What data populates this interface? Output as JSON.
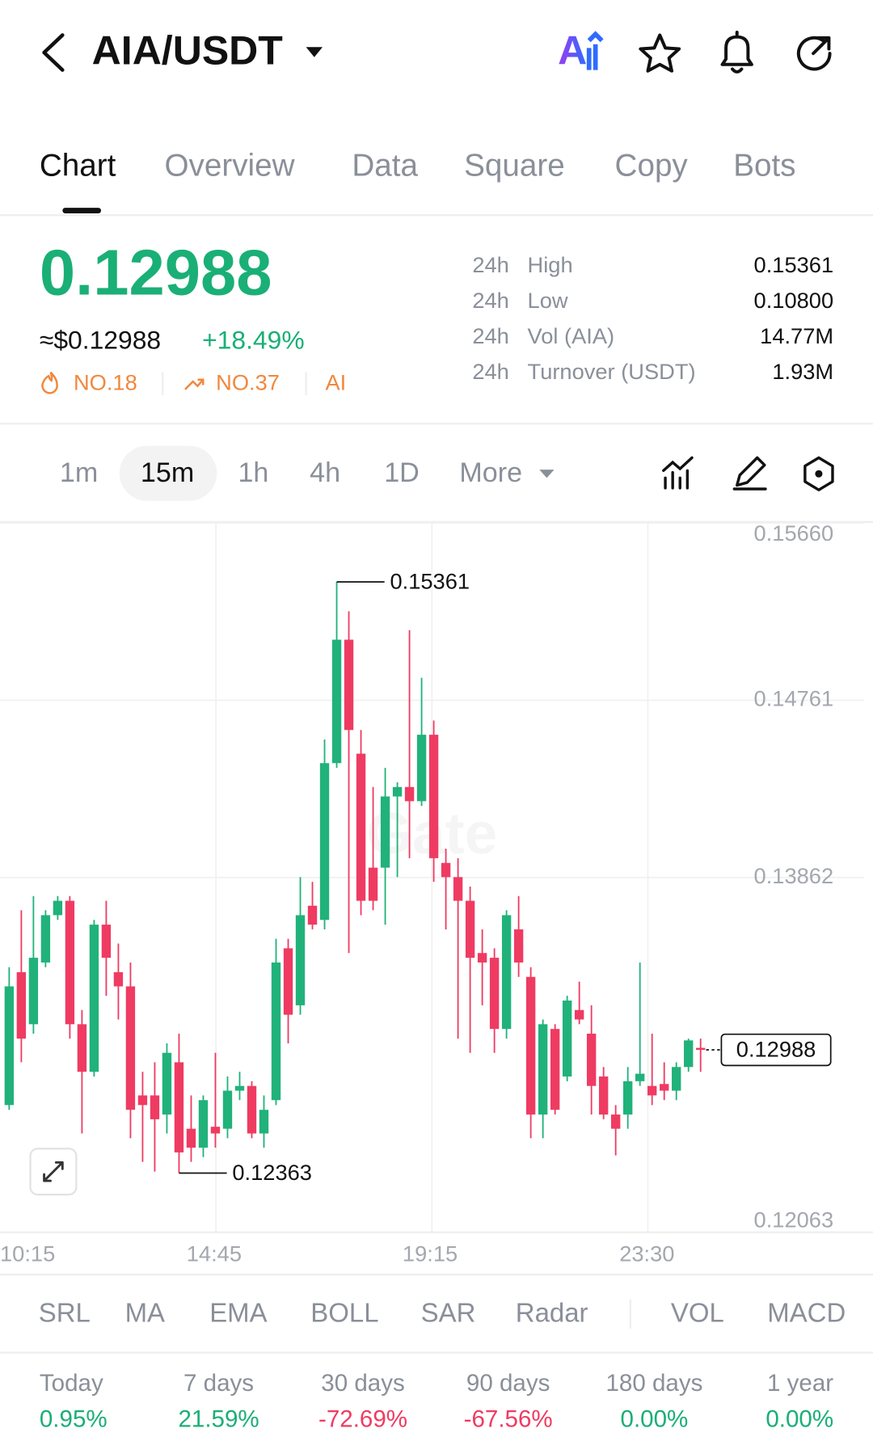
{
  "header": {
    "pair": "AIA/USDT"
  },
  "tabs": [
    "Chart",
    "Overview",
    "Data",
    "Square",
    "Copy",
    "Bots"
  ],
  "ticker": {
    "price": "0.12988",
    "usd": "≈$0.12988",
    "change": "+18.49%",
    "ranks": [
      "NO.18",
      "NO.37",
      "AI"
    ]
  },
  "stats": [
    {
      "period": "24h",
      "label": "High",
      "value": "0.15361"
    },
    {
      "period": "24h",
      "label": "Low",
      "value": "0.10800"
    },
    {
      "period": "24h",
      "label": "Vol (AIA)",
      "value": "14.77M"
    },
    {
      "period": "24h",
      "label": "Turnover (USDT)",
      "value": "1.93M"
    }
  ],
  "intervals": [
    "1m",
    "15m",
    "1h",
    "4h",
    "1D",
    "More"
  ],
  "chart_data": {
    "type": "candlestick",
    "watermark": "Gate",
    "open": [
      0.12708,
      0.13382,
      0.13118,
      0.13431,
      0.13671,
      0.13744,
      0.13118,
      0.12877,
      0.13623,
      0.13382,
      0.1331,
      0.12757,
      0.12757,
      0.1266,
      0.12925,
      0.12588,
      0.12492,
      0.12598,
      0.12588,
      0.12781,
      0.12805,
      0.12564,
      0.12733,
      0.13503,
      0.13214,
      0.13719,
      0.13647,
      0.14442,
      0.15068,
      0.1449,
      0.13912,
      0.13912,
      0.14273,
      0.14321,
      0.14249,
      0.14586,
      0.13936,
      0.13864,
      0.13744,
      0.13479,
      0.13455,
      0.13094,
      0.13599,
      0.13358,
      0.1266,
      0.13094,
      0.12853,
      0.1319,
      0.1307,
      0.12853,
      0.1266,
      0.1266,
      0.12829,
      0.12805,
      0.12815,
      0.12781,
      0.12901,
      0.12998
    ],
    "high": [
      0.13407,
      0.13696,
      0.13768,
      0.13696,
      0.13768,
      0.13768,
      0.1319,
      0.13647,
      0.13744,
      0.13527,
      0.13431,
      0.12877,
      0.12925,
      0.13021,
      0.1307,
      0.12757,
      0.12757,
      0.12973,
      0.12853,
      0.12877,
      0.12829,
      0.12757,
      0.13551,
      0.13551,
      0.13864,
      0.1384,
      0.14562,
      0.15361,
      0.15212,
      0.1461,
      0.14321,
      0.14418,
      0.14345,
      0.15116,
      0.14875,
      0.14658,
      0.14008,
      0.1396,
      0.13816,
      0.13599,
      0.13503,
      0.13696,
      0.13768,
      0.13407,
      0.13142,
      0.13118,
      0.13262,
      0.13334,
      0.13214,
      0.12901,
      0.12708,
      0.12901,
      0.13431,
      0.1307,
      0.12925,
      0.12925,
      0.13045,
      0.13045
    ],
    "low": [
      0.12684,
      0.12925,
      0.1307,
      0.13407,
      0.13647,
      0.13045,
      0.12564,
      0.12853,
      0.13262,
      0.13142,
      0.1254,
      0.1242,
      0.12371,
      0.12564,
      0.12363,
      0.1242,
      0.12444,
      0.12492,
      0.1254,
      0.12733,
      0.1254,
      0.12492,
      0.12708,
      0.13021,
      0.13166,
      0.13599,
      0.13599,
      0.14418,
      0.13479,
      0.13671,
      0.13696,
      0.13623,
      0.13864,
      0.1396,
      0.14225,
      0.1384,
      0.13599,
      0.13045,
      0.12973,
      0.13214,
      0.12973,
      0.13045,
      0.13358,
      0.1254,
      0.1254,
      0.1266,
      0.12829,
      0.13118,
      0.1266,
      0.12636,
      0.12453,
      0.12588,
      0.12805,
      0.12708,
      0.12733,
      0.12733,
      0.12877,
      0.12877
    ],
    "close": [
      0.1331,
      0.13045,
      0.13455,
      0.13671,
      0.13744,
      0.13118,
      0.12877,
      0.13623,
      0.13455,
      0.1331,
      0.12684,
      0.12708,
      0.12636,
      0.12973,
      0.12468,
      0.12492,
      0.12733,
      0.12564,
      0.12781,
      0.12805,
      0.12564,
      0.12684,
      0.13431,
      0.13166,
      0.13671,
      0.13623,
      0.14442,
      0.15068,
      0.1461,
      0.13744,
      0.13744,
      0.14273,
      0.14321,
      0.14249,
      0.14586,
      0.1396,
      0.13864,
      0.13744,
      0.13455,
      0.13431,
      0.13094,
      0.13671,
      0.13431,
      0.1266,
      0.13118,
      0.12684,
      0.13238,
      0.13142,
      0.12805,
      0.1266,
      0.12588,
      0.12829,
      0.12867,
      0.12757,
      0.12781,
      0.12901,
      0.13036,
      0.12988
    ],
    "ylim": [
      0.12063,
      0.1566
    ],
    "yticks": [
      {
        "value": 0.1566,
        "label": "0.15660"
      },
      0.14761,
      0.13862,
      0.12063
    ],
    "xticks": [
      "10:15",
      "14:45",
      "19:15",
      "23:30"
    ],
    "high_marker": 0.15361,
    "low_marker": 0.12363,
    "last_price": 0.12988,
    "up_color": "#20b27a",
    "down_color": "#ef3b62",
    "grid": true
  },
  "indicators": [
    "SRL",
    "MA",
    "EMA",
    "BOLL",
    "SAR",
    "Radar",
    "VOL",
    "MACD"
  ],
  "performance": [
    {
      "period": "Today",
      "value": "0.95%"
    },
    {
      "period": "7 days",
      "value": "21.59%"
    },
    {
      "period": "30 days",
      "value": "-72.69%"
    },
    {
      "period": "90 days",
      "value": "-67.56%"
    },
    {
      "period": "180 days",
      "value": "0.00%"
    },
    {
      "period": "1 year",
      "value": "0.00%"
    }
  ]
}
